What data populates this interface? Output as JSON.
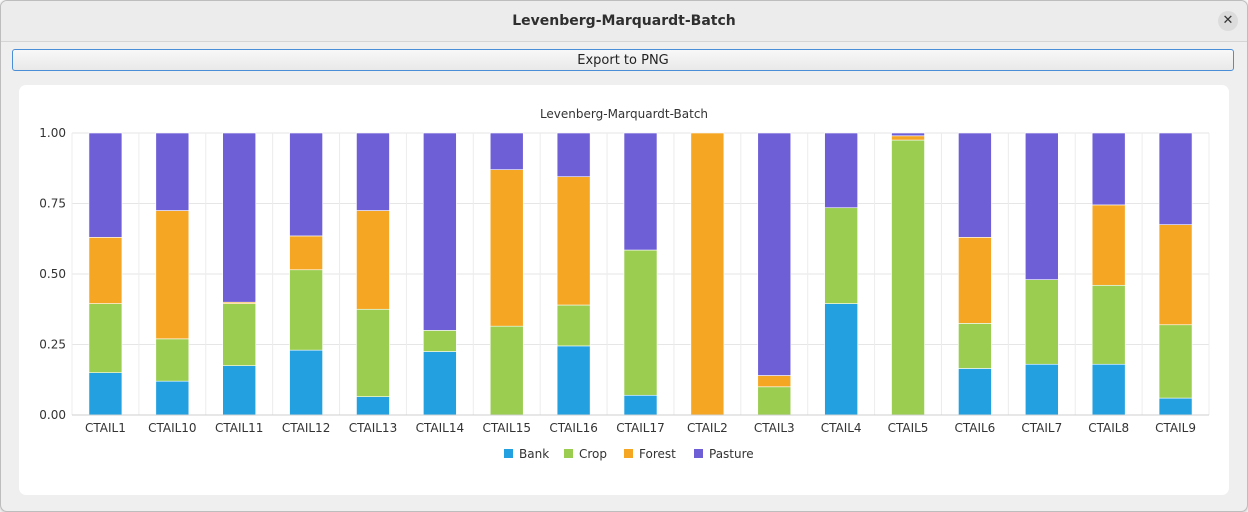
{
  "window": {
    "title": "Levenberg-Marquardt-Batch",
    "close_icon": "close-icon"
  },
  "toolbar": {
    "export_label": "Export to PNG"
  },
  "colors": {
    "Bank": "#22a0e0",
    "Crop": "#9acd50",
    "Forest": "#f5a623",
    "Pasture": "#6e5fd6"
  },
  "chart_data": {
    "type": "bar",
    "stacked": true,
    "title": "Levenberg-Marquardt-Batch",
    "ylim": [
      0,
      1
    ],
    "yticks": [
      "0.00",
      "0.25",
      "0.50",
      "0.75",
      "1.00"
    ],
    "grid": true,
    "legend_position": "bottom",
    "categories": [
      "CTAIL1",
      "CTAIL10",
      "CTAIL11",
      "CTAIL12",
      "CTAIL13",
      "CTAIL14",
      "CTAIL15",
      "CTAIL16",
      "CTAIL17",
      "CTAIL2",
      "CTAIL3",
      "CTAIL4",
      "CTAIL5",
      "CTAIL6",
      "CTAIL7",
      "CTAIL8",
      "CTAIL9"
    ],
    "series": [
      {
        "name": "Bank",
        "values": [
          0.15,
          0.12,
          0.175,
          0.23,
          0.065,
          0.225,
          0.0,
          0.245,
          0.07,
          0.0,
          0.0,
          0.395,
          0.0,
          0.165,
          0.18,
          0.18,
          0.06
        ]
      },
      {
        "name": "Crop",
        "values": [
          0.245,
          0.15,
          0.22,
          0.285,
          0.31,
          0.075,
          0.315,
          0.145,
          0.515,
          0.0,
          0.1,
          0.34,
          0.975,
          0.16,
          0.3,
          0.28,
          0.26
        ]
      },
      {
        "name": "Forest",
        "values": [
          0.235,
          0.455,
          0.005,
          0.12,
          0.35,
          0.0,
          0.555,
          0.455,
          0.0,
          1.0,
          0.04,
          0.0,
          0.015,
          0.305,
          0.0,
          0.285,
          0.355
        ]
      },
      {
        "name": "Pasture",
        "values": [
          0.37,
          0.275,
          0.6,
          0.365,
          0.275,
          0.7,
          0.13,
          0.155,
          0.415,
          0.0,
          0.86,
          0.265,
          0.01,
          0.37,
          0.52,
          0.255,
          0.325
        ]
      }
    ]
  }
}
